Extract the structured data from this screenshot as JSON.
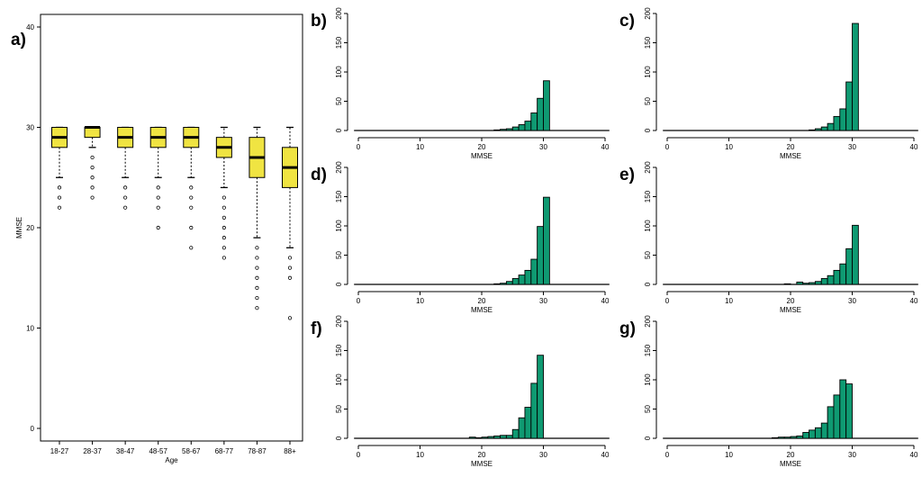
{
  "colors": {
    "box_fill": "#f0e442",
    "bar_fill": "#0f9a72",
    "stroke": "#000000"
  },
  "chart_data": [
    {
      "type": "boxplot",
      "panel": "a)",
      "xlabel": "Age",
      "ylabel": "MMSE",
      "ylim": [
        0,
        40
      ],
      "yticks": [
        "0",
        "10",
        "20",
        "30",
        "40"
      ],
      "categories": [
        "18-27",
        "28-37",
        "38-47",
        "48-57",
        "58-67",
        "68-77",
        "78-87",
        "88+"
      ],
      "boxes": [
        {
          "whisker_low": 25,
          "q1": 28,
          "median": 29,
          "q3": 30,
          "whisker_high": 30,
          "outliers": [
            24,
            23,
            22
          ]
        },
        {
          "whisker_low": 28,
          "q1": 29,
          "median": 30,
          "q3": 30,
          "whisker_high": 30,
          "outliers": [
            27,
            26,
            25,
            24,
            23
          ]
        },
        {
          "whisker_low": 25,
          "q1": 28,
          "median": 29,
          "q3": 30,
          "whisker_high": 30,
          "outliers": [
            24,
            23,
            22
          ]
        },
        {
          "whisker_low": 25,
          "q1": 28,
          "median": 29,
          "q3": 30,
          "whisker_high": 30,
          "outliers": [
            24,
            23,
            22,
            20
          ]
        },
        {
          "whisker_low": 25,
          "q1": 28,
          "median": 29,
          "q3": 30,
          "whisker_high": 30,
          "outliers": [
            24,
            23,
            22,
            20,
            18
          ]
        },
        {
          "whisker_low": 24,
          "q1": 27,
          "median": 28,
          "q3": 29,
          "whisker_high": 30,
          "outliers": [
            23,
            22,
            21,
            20,
            19,
            18,
            17
          ]
        },
        {
          "whisker_low": 19,
          "q1": 25,
          "median": 27,
          "q3": 29,
          "whisker_high": 30,
          "outliers": [
            18,
            17,
            16,
            15,
            14,
            13,
            12
          ]
        },
        {
          "whisker_low": 18,
          "q1": 24,
          "median": 26,
          "q3": 28,
          "whisker_high": 30,
          "outliers": [
            17,
            16,
            15,
            11
          ]
        }
      ]
    },
    {
      "type": "bar",
      "panel": "b)",
      "xlabel": "MMSE",
      "xlim": [
        0,
        40
      ],
      "ylim": [
        0,
        200
      ],
      "xticks": [
        "0",
        "10",
        "20",
        "30",
        "40"
      ],
      "yticks": [
        "0",
        "50",
        "100",
        "150",
        "200"
      ],
      "bin_start": 17,
      "bin_width": 1,
      "values": [
        0,
        0,
        0,
        0,
        0,
        1,
        2,
        3,
        6,
        10,
        16,
        30,
        55,
        85
      ]
    },
    {
      "type": "bar",
      "panel": "c)",
      "xlabel": "MMSE",
      "xlim": [
        0,
        40
      ],
      "ylim": [
        0,
        200
      ],
      "xticks": [
        "0",
        "10",
        "20",
        "30",
        "40"
      ],
      "yticks": [
        "0",
        "50",
        "100",
        "150",
        "200"
      ],
      "bin_start": 17,
      "bin_width": 1,
      "values": [
        0,
        0,
        0,
        0,
        0,
        0,
        1,
        3,
        6,
        12,
        24,
        37,
        83,
        183
      ]
    },
    {
      "type": "bar",
      "panel": "d)",
      "xlabel": "MMSE",
      "xlim": [
        0,
        40
      ],
      "ylim": [
        0,
        200
      ],
      "xticks": [
        "0",
        "10",
        "20",
        "30",
        "40"
      ],
      "yticks": [
        "0",
        "50",
        "100",
        "150",
        "200"
      ],
      "bin_start": 17,
      "bin_width": 1,
      "values": [
        0,
        0,
        0,
        0,
        0,
        1,
        2,
        5,
        10,
        16,
        24,
        43,
        99,
        149
      ]
    },
    {
      "type": "bar",
      "panel": "e)",
      "xlabel": "MMSE",
      "xlim": [
        0,
        40
      ],
      "ylim": [
        0,
        200
      ],
      "xticks": [
        "0",
        "10",
        "20",
        "30",
        "40"
      ],
      "yticks": [
        "0",
        "50",
        "100",
        "150",
        "200"
      ],
      "bin_start": 17,
      "bin_width": 1,
      "values": [
        0,
        0,
        1,
        0,
        4,
        2,
        3,
        5,
        10,
        15,
        24,
        35,
        61,
        101
      ]
    },
    {
      "type": "bar",
      "panel": "f)",
      "xlabel": "MMSE",
      "xlim": [
        0,
        40
      ],
      "ylim": [
        0,
        200
      ],
      "xticks": [
        "0",
        "10",
        "20",
        "30",
        "40"
      ],
      "yticks": [
        "0",
        "50",
        "100",
        "150",
        "200"
      ],
      "bin_start": 17,
      "bin_width": 1,
      "values": [
        0,
        2,
        1,
        2,
        3,
        4,
        5,
        5,
        15,
        35,
        53,
        94,
        142
      ]
    },
    {
      "type": "bar",
      "panel": "g)",
      "xlabel": "MMSE",
      "xlim": [
        0,
        40
      ],
      "ylim": [
        0,
        200
      ],
      "xticks": [
        "0",
        "10",
        "20",
        "30",
        "40"
      ],
      "yticks": [
        "0",
        "50",
        "100",
        "150",
        "200"
      ],
      "bin_start": 17,
      "bin_width": 1,
      "values": [
        1,
        2,
        2,
        3,
        4,
        10,
        14,
        18,
        26,
        54,
        74,
        100,
        93
      ]
    }
  ]
}
